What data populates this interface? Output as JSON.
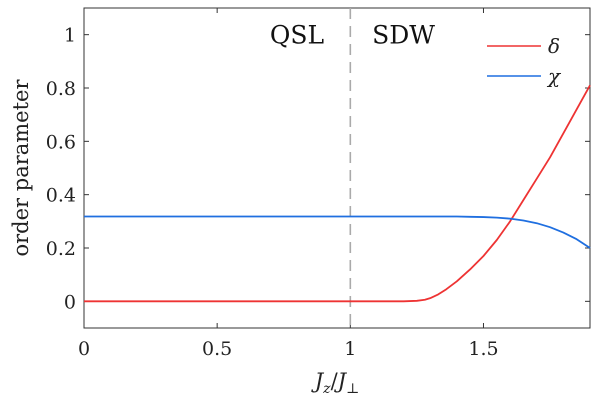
{
  "chart_data": {
    "type": "line",
    "title": "",
    "xlabel": "J_z/J_⊥",
    "xlabel_parts": {
      "main1": "J",
      "sub1": "z",
      "slash": "/",
      "main2": "J",
      "sub2": "⊥"
    },
    "ylabel": "order parameter",
    "xlim": [
      0,
      1.9
    ],
    "ylim": [
      -0.1,
      1.1
    ],
    "xticks": [
      0,
      0.5,
      1,
      1.5
    ],
    "xtick_labels": [
      "0",
      "0.5",
      "1",
      "1.5"
    ],
    "yticks": [
      0,
      0.2,
      0.4,
      0.6,
      0.8,
      1
    ],
    "ytick_labels": [
      "0",
      "0.2",
      "0.4",
      "0.6",
      "0.8",
      "1"
    ],
    "grid": false,
    "legend_position": "top-right",
    "annotations": [
      {
        "text": "QSL",
        "x": 0.8,
        "y": 1.0
      },
      {
        "text": "SDW",
        "x": 1.2,
        "y": 1.0
      }
    ],
    "vline": {
      "x": 1.0,
      "style": "dashed",
      "color": "#aaaaaa"
    },
    "series": [
      {
        "name": "δ",
        "color": "#ee3333",
        "x": [
          0,
          0.5,
          1.0,
          1.2,
          1.25,
          1.28,
          1.3,
          1.33,
          1.36,
          1.4,
          1.45,
          1.5,
          1.55,
          1.6,
          1.65,
          1.7,
          1.75,
          1.8,
          1.85,
          1.9
        ],
        "values": [
          0,
          0,
          0,
          0,
          0.002,
          0.006,
          0.012,
          0.026,
          0.045,
          0.075,
          0.12,
          0.17,
          0.23,
          0.3,
          0.38,
          0.46,
          0.54,
          0.63,
          0.72,
          0.81
        ]
      },
      {
        "name": "χ",
        "color": "#1f6fe0",
        "x": [
          0,
          0.5,
          1.0,
          1.2,
          1.3,
          1.4,
          1.45,
          1.5,
          1.55,
          1.6,
          1.65,
          1.7,
          1.75,
          1.8,
          1.85,
          1.9
        ],
        "values": [
          0.318,
          0.318,
          0.318,
          0.318,
          0.318,
          0.318,
          0.317,
          0.316,
          0.314,
          0.31,
          0.303,
          0.293,
          0.278,
          0.258,
          0.233,
          0.2
        ]
      }
    ]
  }
}
